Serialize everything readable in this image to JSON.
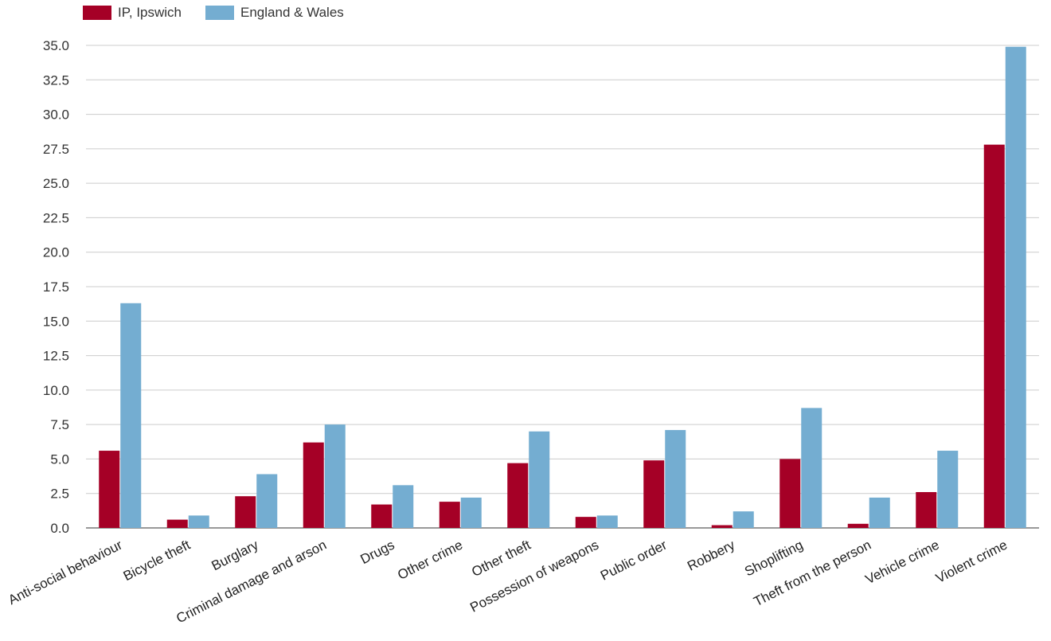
{
  "chart_data": {
    "type": "bar",
    "categories": [
      "Anti-social behaviour",
      "Bicycle theft",
      "Burglary",
      "Criminal damage and arson",
      "Drugs",
      "Other crime",
      "Other theft",
      "Possession of weapons",
      "Public order",
      "Robbery",
      "Shoplifting",
      "Theft from the person",
      "Vehicle crime",
      "Violent crime"
    ],
    "series": [
      {
        "name": "IP, Ipswich",
        "color": "#a50026",
        "values": [
          5.6,
          0.6,
          2.3,
          6.2,
          1.7,
          1.9,
          4.7,
          0.8,
          4.9,
          0.2,
          5.0,
          0.3,
          2.6,
          27.8
        ]
      },
      {
        "name": "England & Wales",
        "color": "#74add1",
        "values": [
          16.3,
          0.9,
          3.9,
          7.5,
          3.1,
          2.2,
          7.0,
          0.9,
          7.1,
          1.2,
          8.7,
          2.2,
          5.6,
          34.9
        ]
      }
    ],
    "yticks": [
      "0.0",
      "2.5",
      "5.0",
      "7.5",
      "10.0",
      "12.5",
      "15.0",
      "17.5",
      "20.0",
      "22.5",
      "25.0",
      "27.5",
      "30.0",
      "32.5",
      "35.0"
    ],
    "ylim": [
      0,
      35
    ],
    "grid": true,
    "legend_position": "top-left"
  }
}
